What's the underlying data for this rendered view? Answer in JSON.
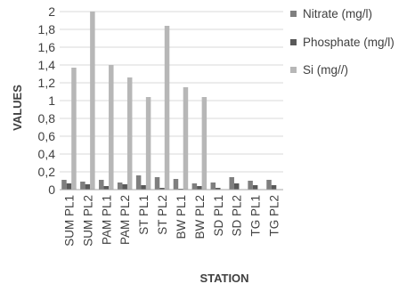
{
  "chart_data": {
    "type": "bar",
    "categories": [
      "SUM PL1",
      "SUM PL2",
      "PAM PL1",
      "PAM PL2",
      "ST PL1",
      "ST PL2",
      "BW PL1",
      "BW PL2",
      "SD PL1",
      "SD PL2",
      "TG PL1",
      "TG PL2"
    ],
    "series": [
      {
        "name": "Nitrate (mg/l)",
        "color": "#7f7f7f",
        "values": [
          0.11,
          0.09,
          0.11,
          0.08,
          0.16,
          0.14,
          0.12,
          0.07,
          0.08,
          0.14,
          0.1,
          0.11
        ]
      },
      {
        "name": "Phosphate (mg/l)",
        "color": "#595959",
        "values": [
          0.07,
          0.06,
          0.04,
          0.06,
          0.05,
          0.02,
          0.01,
          0.04,
          0.02,
          0.07,
          0.05,
          0.05
        ]
      },
      {
        "name": "Si (mg//)",
        "color": "#b7b7b7",
        "values": [
          1.37,
          2.0,
          1.4,
          1.26,
          1.04,
          1.84,
          1.15,
          1.04,
          0.0,
          0.0,
          0.0,
          0.0
        ]
      }
    ],
    "ylim": [
      0,
      2
    ],
    "yticks": [
      "0",
      "0,2",
      "0,4",
      "0,6",
      "0,8",
      "1",
      "1,2",
      "1,4",
      "1,6",
      "1,8",
      "2"
    ],
    "xlabel": "STATION",
    "ylabel": "VALUES",
    "grid": true,
    "legend_position": "right"
  }
}
